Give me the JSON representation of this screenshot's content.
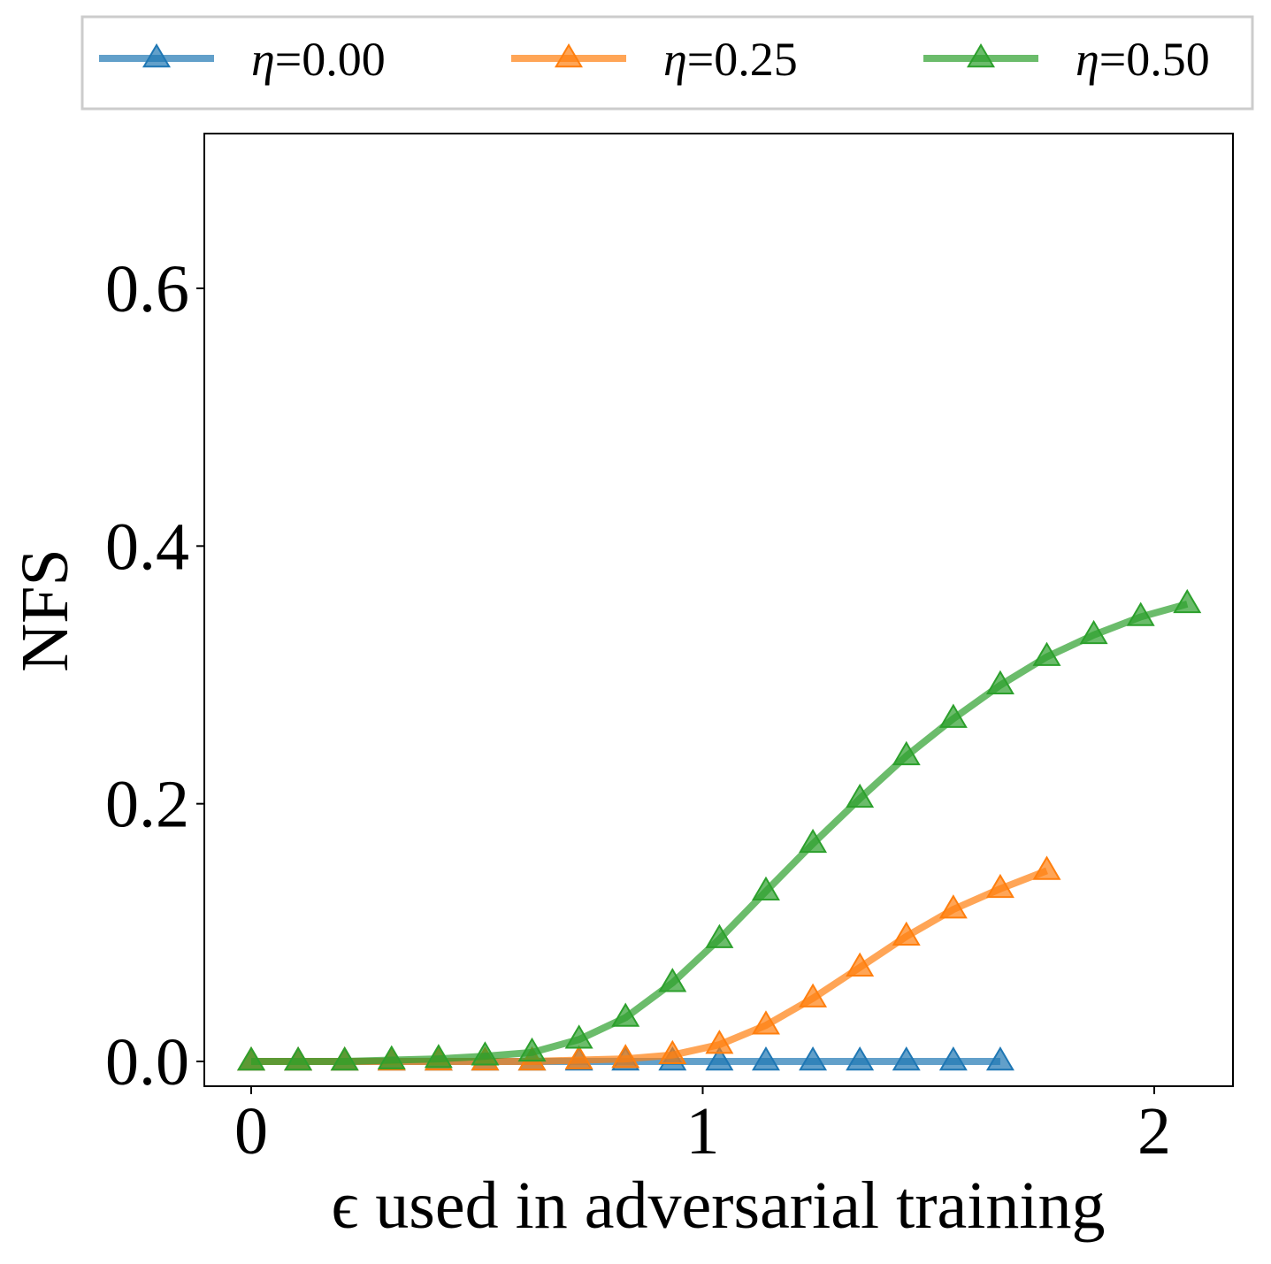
{
  "chart_data": {
    "type": "line",
    "title": "",
    "xlabel": "ϵ used in adversarial training",
    "ylabel": "NFS",
    "xlim": [
      -0.1,
      2.17
    ],
    "ylim": [
      -0.02,
      0.72
    ],
    "xticks": [
      0,
      1,
      2
    ],
    "xtick_labels": [
      "0",
      "1",
      "2"
    ],
    "yticks": [
      0.0,
      0.2,
      0.4,
      0.6
    ],
    "ytick_labels": [
      "0.0",
      "0.2",
      "0.4",
      "0.6"
    ],
    "grid": false,
    "legend_position": "top",
    "series": [
      {
        "name": "η=0.00",
        "legend_prefix": "η",
        "legend_value": "=0.00",
        "color": "#1f77b4",
        "marker": "triangle-up",
        "x": [
          0.0,
          0.104,
          0.207,
          0.311,
          0.415,
          0.518,
          0.622,
          0.726,
          0.829,
          0.933,
          1.037,
          1.14,
          1.244,
          1.348,
          1.451,
          1.555,
          1.659
        ],
        "y": [
          0,
          0,
          0,
          0,
          0,
          0,
          0,
          0,
          0,
          0,
          0,
          0,
          0,
          0,
          0,
          0,
          0
        ]
      },
      {
        "name": "η=0.25",
        "legend_prefix": "η",
        "legend_value": "=0.25",
        "color": "#ff7f0e",
        "marker": "triangle-up",
        "x": [
          0.0,
          0.104,
          0.207,
          0.311,
          0.415,
          0.518,
          0.622,
          0.726,
          0.829,
          0.933,
          1.037,
          1.14,
          1.244,
          1.348,
          1.451,
          1.555,
          1.659,
          1.762
        ],
        "y": [
          0,
          0,
          0,
          0,
          0,
          0,
          0,
          0.001,
          0.002,
          0.005,
          0.013,
          0.028,
          0.049,
          0.073,
          0.097,
          0.118,
          0.134,
          0.148
        ]
      },
      {
        "name": "η=0.50",
        "legend_prefix": "η",
        "legend_value": "=0.50",
        "color": "#2ca02c",
        "marker": "triangle-up",
        "x": [
          0.0,
          0.104,
          0.207,
          0.311,
          0.415,
          0.518,
          0.622,
          0.726,
          0.829,
          0.933,
          1.037,
          1.14,
          1.244,
          1.348,
          1.451,
          1.555,
          1.659,
          1.762,
          1.866,
          1.97,
          2.073
        ],
        "y": [
          0,
          0,
          0,
          0.001,
          0.002,
          0.004,
          0.007,
          0.017,
          0.034,
          0.061,
          0.095,
          0.132,
          0.169,
          0.204,
          0.237,
          0.266,
          0.292,
          0.314,
          0.331,
          0.345,
          0.355
        ]
      }
    ]
  }
}
